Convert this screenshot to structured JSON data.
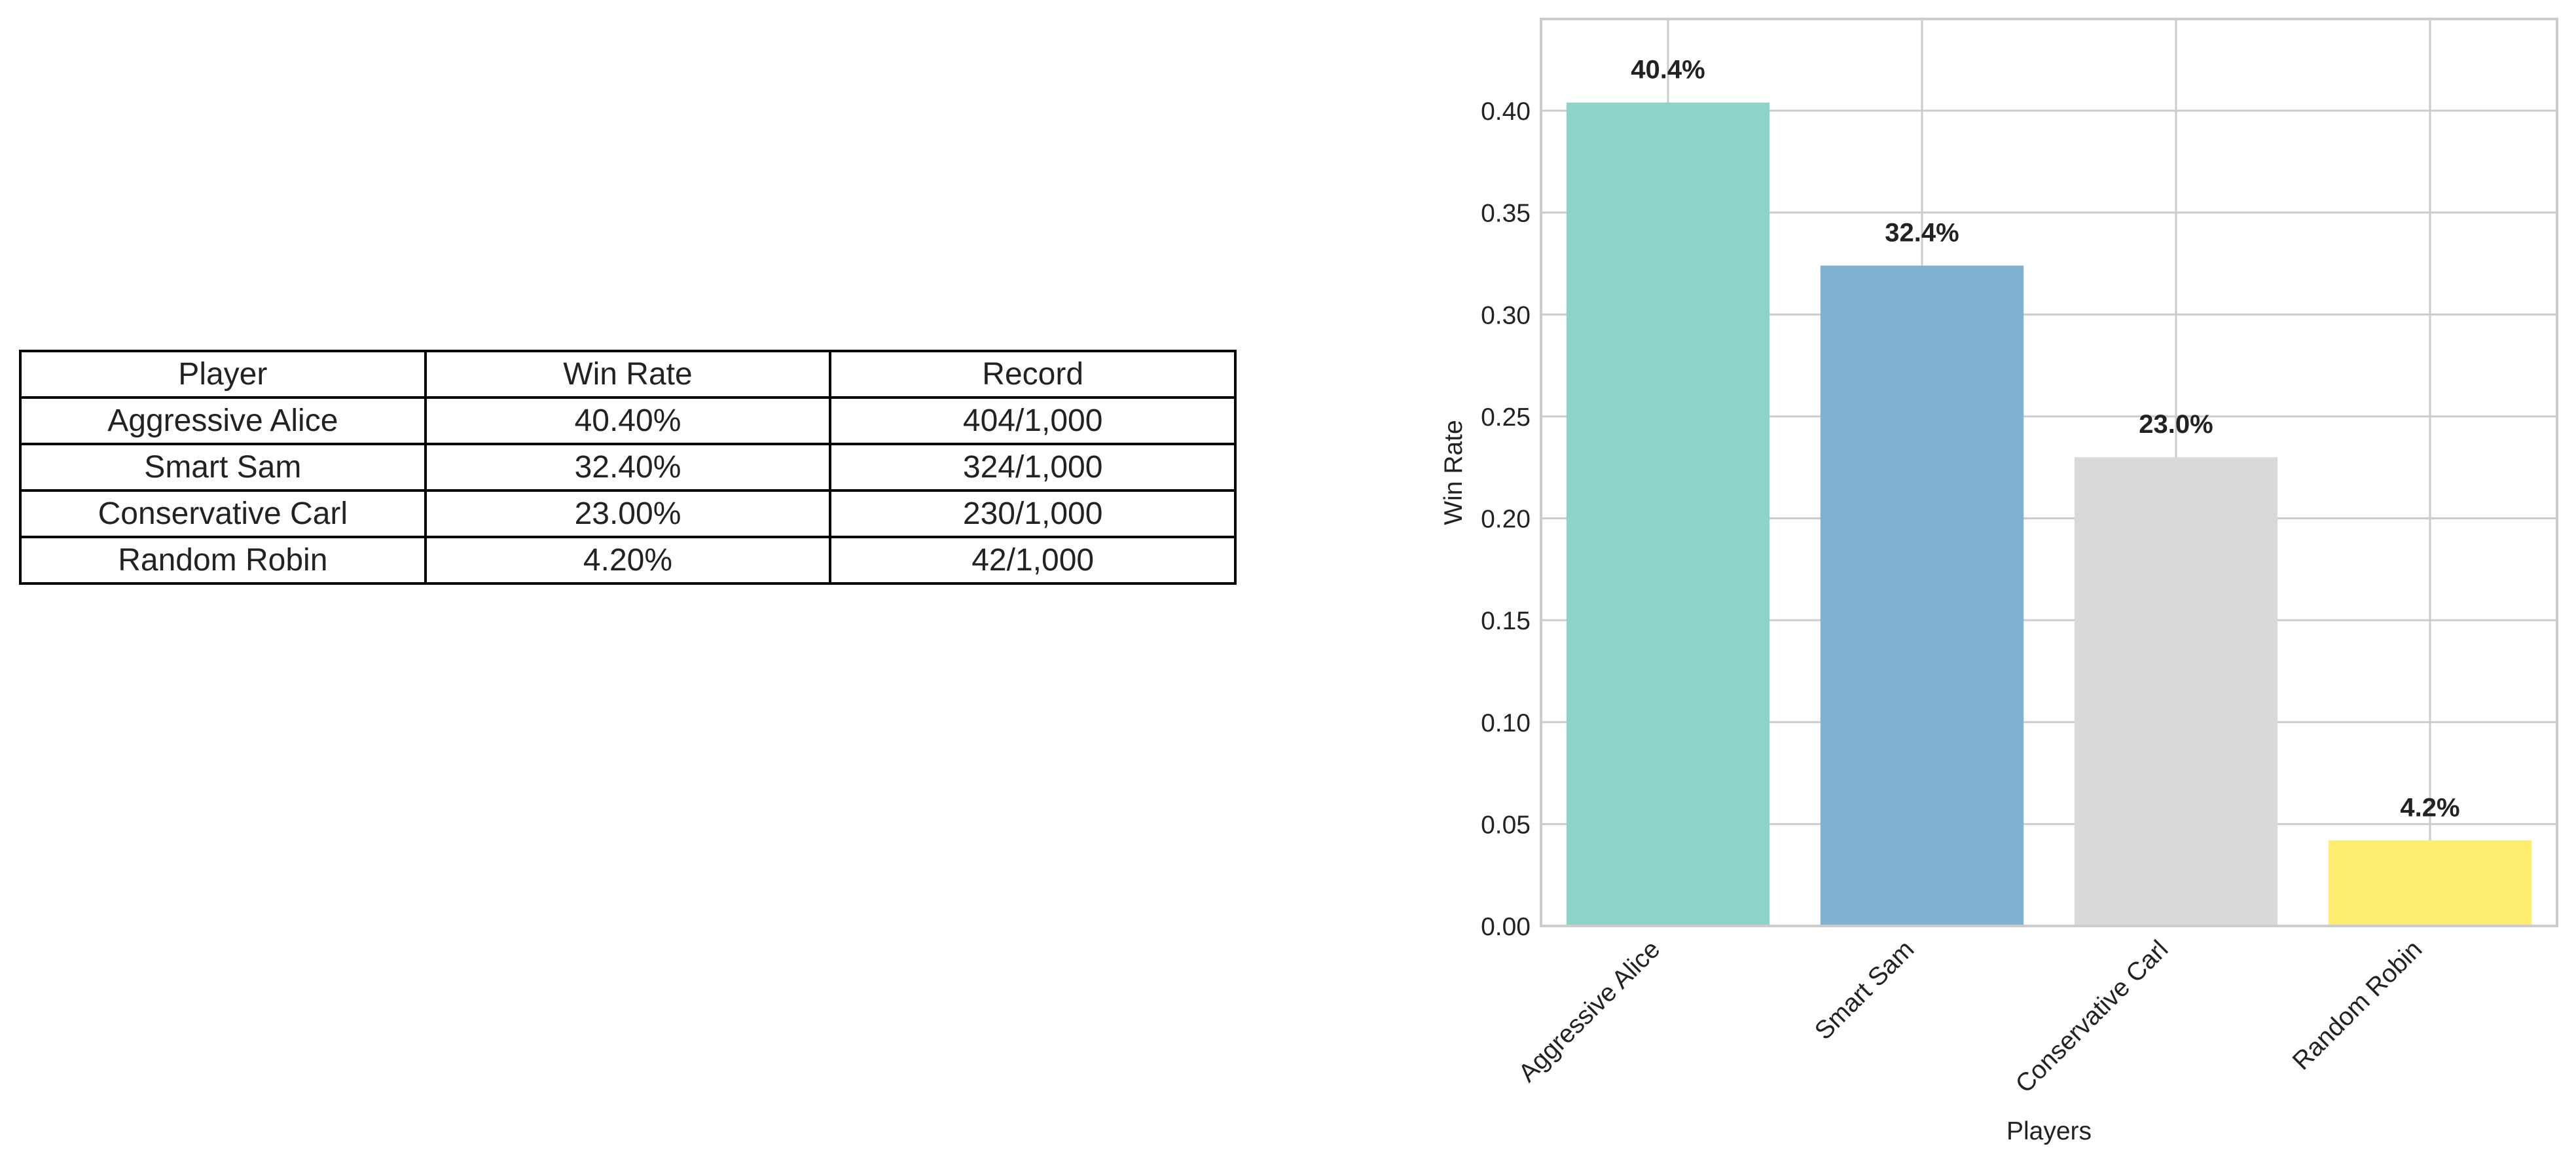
{
  "table": {
    "headers": [
      "Player",
      "Win Rate",
      "Record"
    ],
    "rows": [
      [
        "Aggressive Alice",
        "40.40%",
        "404/1,000"
      ],
      [
        "Smart Sam",
        "32.40%",
        "324/1,000"
      ],
      [
        "Conservative Carl",
        "23.00%",
        "230/1,000"
      ],
      [
        "Random Robin",
        "4.20%",
        "42/1,000"
      ]
    ]
  },
  "chart_data": {
    "type": "bar",
    "categories": [
      "Aggressive Alice",
      "Smart Sam",
      "Conservative Carl",
      "Random Robin"
    ],
    "values": [
      0.404,
      0.324,
      0.23,
      0.042
    ],
    "data_labels": [
      "40.4%",
      "32.4%",
      "23.0%",
      "4.2%"
    ],
    "colors": [
      "#8dd3c7",
      "#80b1d3",
      "#d9d9d9",
      "#ffed6f"
    ],
    "xlabel": "Players",
    "ylabel": "Win Rate",
    "ylim": [
      0,
      0.445
    ],
    "yticks": [
      0.0,
      0.05,
      0.1,
      0.15,
      0.2,
      0.25,
      0.3,
      0.35,
      0.4
    ],
    "ytick_labels": [
      "0.00",
      "0.05",
      "0.10",
      "0.15",
      "0.20",
      "0.25",
      "0.30",
      "0.35",
      "0.40"
    ],
    "grid": true
  }
}
